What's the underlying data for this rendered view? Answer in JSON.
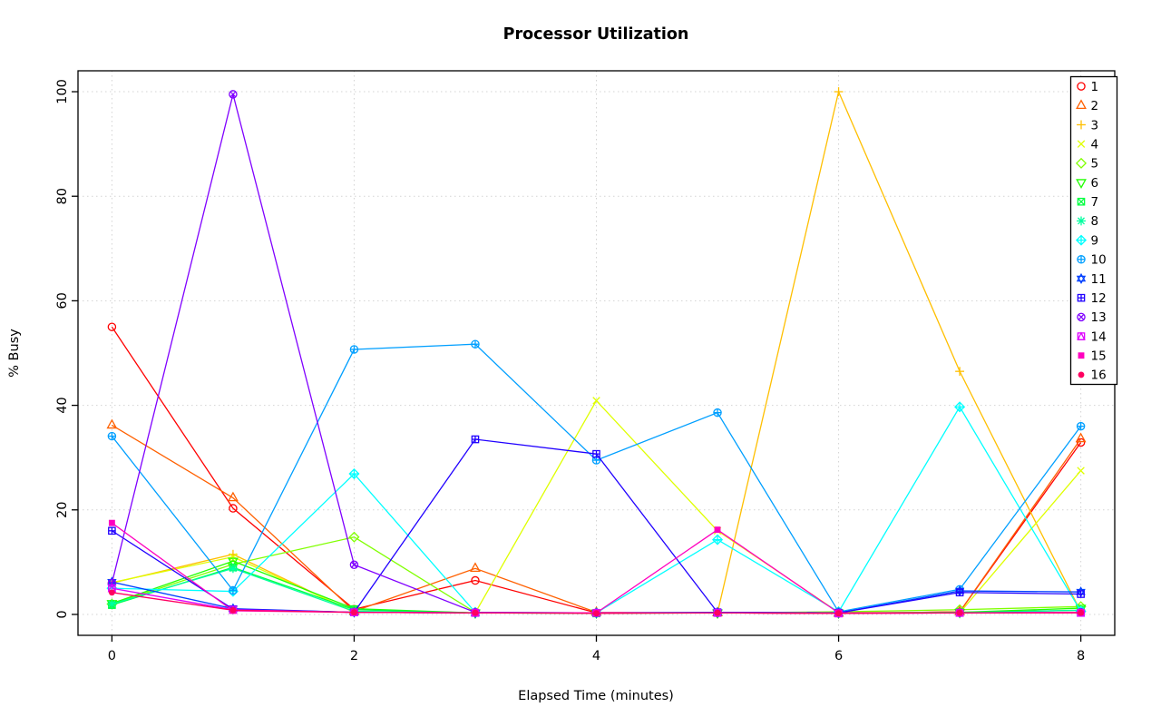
{
  "page": {
    "background": "#FFFFFF"
  },
  "chart_data": {
    "type": "line",
    "title": "Processor Utilization",
    "xlabel": "Elapsed Time (minutes)",
    "ylabel": "% Busy",
    "x": [
      0,
      1,
      2,
      3,
      4,
      5,
      6,
      7,
      8
    ],
    "xlim": [
      0,
      8
    ],
    "ylim": [
      0,
      100
    ],
    "xticks": [
      0,
      2,
      4,
      6,
      8
    ],
    "yticks": [
      0,
      20,
      40,
      60,
      80,
      100
    ],
    "grid": true,
    "grid_style": "dotted",
    "grid_color": "#D3D3D3",
    "legend_position": "topright",
    "series": [
      {
        "name": "1",
        "color": "#FF0000",
        "pch": 1,
        "marker": "open-circle",
        "values": [
          55.0,
          20.3,
          1.0,
          6.5,
          0.3,
          0.3,
          0.2,
          0.5,
          32.9
        ]
      },
      {
        "name": "2",
        "color": "#FF6000",
        "pch": 2,
        "marker": "open-triangle-up",
        "values": [
          36.2,
          22.3,
          0.6,
          8.8,
          0.4,
          0.3,
          0.2,
          0.5,
          33.6
        ]
      },
      {
        "name": "3",
        "color": "#FFBF00",
        "pch": 3,
        "marker": "plus",
        "values": [
          6.0,
          11.5,
          0.4,
          0.3,
          0.3,
          0.3,
          100.0,
          46.5,
          0.5
        ]
      },
      {
        "name": "4",
        "color": "#DFFF00",
        "pch": 4,
        "marker": "cross",
        "values": [
          6.1,
          11.0,
          0.5,
          0.3,
          40.9,
          16.0,
          0.4,
          0.3,
          27.5
        ]
      },
      {
        "name": "5",
        "color": "#80FF00",
        "pch": 5,
        "marker": "open-diamond",
        "values": [
          2.0,
          9.6,
          14.8,
          0.4,
          0.3,
          0.3,
          0.5,
          0.9,
          1.5
        ]
      },
      {
        "name": "6",
        "color": "#20FF00",
        "pch": 6,
        "marker": "open-triangle-down",
        "values": [
          2.1,
          10.2,
          1.1,
          0.3,
          0.3,
          0.3,
          0.3,
          0.4,
          1.2
        ]
      },
      {
        "name": "7",
        "color": "#00FF40",
        "pch": 7,
        "marker": "square-cross",
        "values": [
          1.8,
          9.0,
          0.9,
          0.3,
          0.2,
          0.3,
          0.3,
          0.4,
          0.8
        ]
      },
      {
        "name": "8",
        "color": "#00FF9F",
        "pch": 8,
        "marker": "asterisk",
        "values": [
          2.0,
          8.8,
          0.6,
          0.3,
          0.3,
          0.4,
          0.3,
          0.3,
          0.8
        ]
      },
      {
        "name": "9",
        "color": "#00FFFF",
        "pch": 9,
        "marker": "diamond-plus",
        "values": [
          5.0,
          4.4,
          26.9,
          0.4,
          0.3,
          14.3,
          0.5,
          39.7,
          0.6
        ]
      },
      {
        "name": "10",
        "color": "#009FFF",
        "pch": 10,
        "marker": "circle-plus",
        "values": [
          34.1,
          4.6,
          50.7,
          51.7,
          29.5,
          38.6,
          0.5,
          4.8,
          36.0
        ]
      },
      {
        "name": "11",
        "color": "#0040FF",
        "pch": 11,
        "marker": "star-of-david",
        "values": [
          6.2,
          1.1,
          0.4,
          0.3,
          0.3,
          0.4,
          0.3,
          4.5,
          4.3
        ]
      },
      {
        "name": "12",
        "color": "#2000FF",
        "pch": 12,
        "marker": "square-plus",
        "values": [
          16.0,
          1.0,
          0.4,
          33.5,
          30.7,
          0.4,
          0.3,
          4.2,
          3.9
        ]
      },
      {
        "name": "13",
        "color": "#8000FF",
        "pch": 13,
        "marker": "circle-cross",
        "values": [
          6.0,
          99.5,
          9.5,
          0.4,
          0.3,
          0.3,
          0.3,
          0.3,
          0.4
        ]
      },
      {
        "name": "14",
        "color": "#DF00FF",
        "pch": 14,
        "marker": "square-triangle",
        "values": [
          5.0,
          0.9,
          0.4,
          0.3,
          0.3,
          0.3,
          0.2,
          0.3,
          0.3
        ]
      },
      {
        "name": "15",
        "color": "#FF00BF",
        "pch": 15,
        "marker": "filled-square",
        "values": [
          17.5,
          0.7,
          0.4,
          0.3,
          0.3,
          16.2,
          0.3,
          0.3,
          0.4
        ]
      },
      {
        "name": "16",
        "color": "#FF0060",
        "pch": 16,
        "marker": "filled-circle",
        "values": [
          4.2,
          0.8,
          0.4,
          0.3,
          0.2,
          0.3,
          0.2,
          0.3,
          0.3
        ]
      }
    ]
  }
}
